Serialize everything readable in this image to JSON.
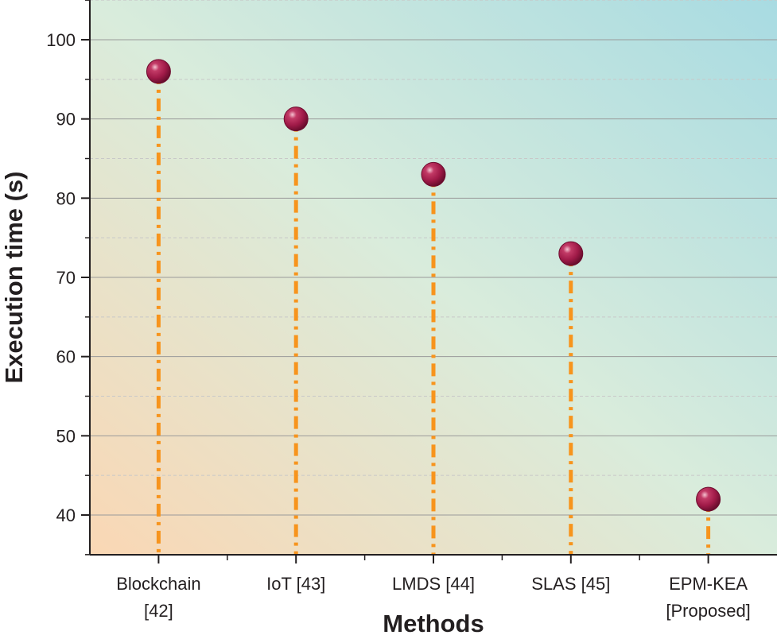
{
  "chart_data": {
    "type": "scatter",
    "style": "lollipop",
    "title": "",
    "xlabel": "Methods",
    "ylabel": "Execution time (s)",
    "categories": [
      {
        "line1": "Blockchain",
        "line2": "[42]"
      },
      {
        "line1": "IoT [43]",
        "line2": ""
      },
      {
        "line1": "LMDS [44]",
        "line2": ""
      },
      {
        "line1": "SLAS [45]",
        "line2": ""
      },
      {
        "line1": "EPM-KEA",
        "line2": "[Proposed]"
      }
    ],
    "values": [
      96,
      90,
      83,
      73,
      42
    ],
    "ylim": [
      35,
      105
    ],
    "yticks": [
      40,
      50,
      60,
      70,
      80,
      90,
      100
    ],
    "ytick_labels": [
      "40",
      "50",
      "60",
      "70",
      "80",
      "90",
      "100"
    ],
    "grid": true,
    "colors": {
      "marker": "#a01a48",
      "stem": "#f7941d",
      "bg_bottom_left": "#fad7b4",
      "bg_middle": "#d9ecdc",
      "bg_top_right": "#a8dbe2",
      "grid_major": "#9a9a9a",
      "grid_minor": "#c8c8c8",
      "axis": "#231f20"
    }
  }
}
